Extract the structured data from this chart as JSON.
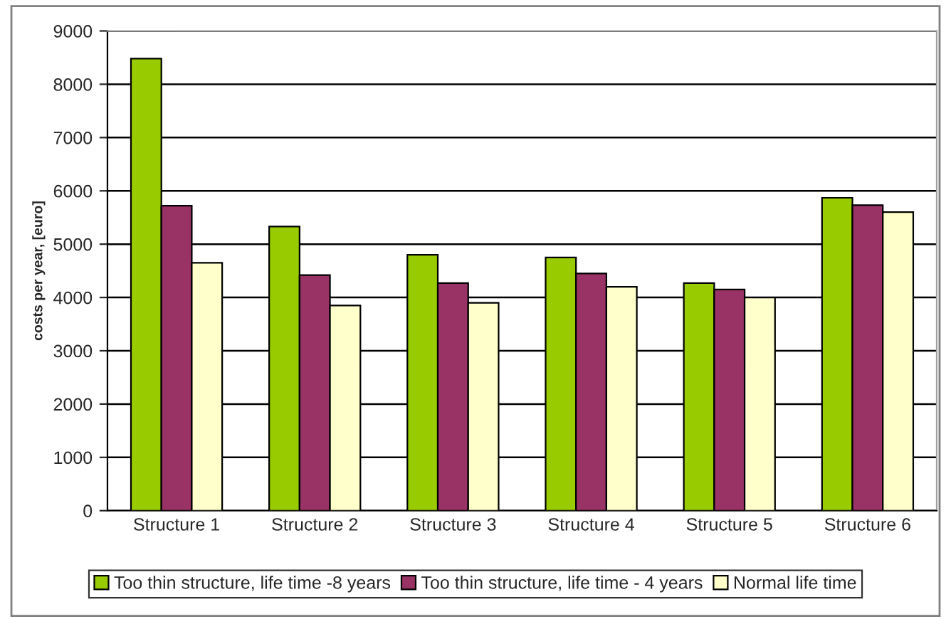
{
  "chart_data": {
    "type": "bar",
    "ylabel": "costs per year, [euro]",
    "categories": [
      "Structure 1",
      "Structure 2",
      "Structure 3",
      "Structure 4",
      "Structure 5",
      "Structure 6"
    ],
    "series": [
      {
        "name": "Too thin structure, life time -8 years",
        "color": "#99cc00",
        "values": [
          8480,
          5330,
          4800,
          4750,
          4270,
          5870
        ]
      },
      {
        "name": "Too thin structure, life time - 4 years",
        "color": "#993366",
        "values": [
          5720,
          4420,
          4270,
          4450,
          4150,
          5730
        ]
      },
      {
        "name": "Normal life time",
        "color": "#ffffcc",
        "values": [
          4650,
          3850,
          3900,
          4200,
          4000,
          5600
        ]
      }
    ],
    "ylim": [
      0,
      9000
    ],
    "yticks": [
      0,
      1000,
      2000,
      3000,
      4000,
      5000,
      6000,
      7000,
      8000,
      9000
    ],
    "grid": "y",
    "legend": "bottom"
  }
}
